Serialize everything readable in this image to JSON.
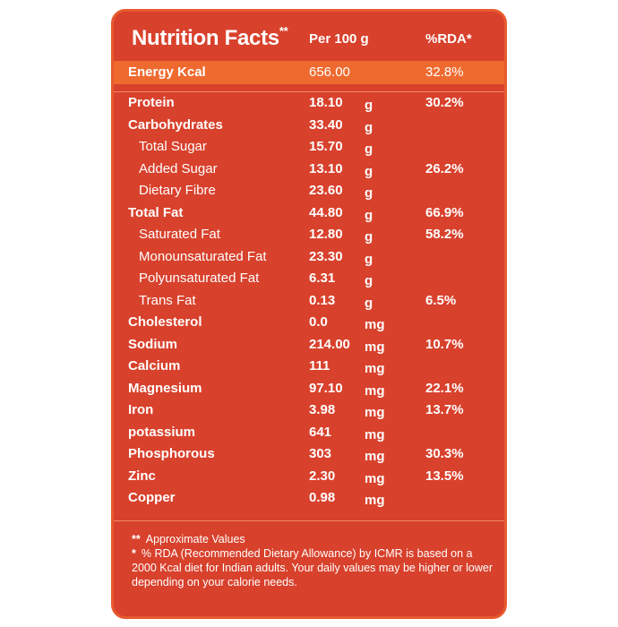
{
  "header": {
    "title": "Nutrition Facts",
    "title_mark": "**",
    "per_label": "Per 100 g",
    "rda_label": "%RDA*"
  },
  "energy": {
    "name": "Energy Kcal",
    "value": "656.00",
    "rda": "32.8%"
  },
  "rows": [
    {
      "name": "Protein",
      "value": "18.10",
      "unit": "g",
      "rda": "30.2%",
      "style": "bold"
    },
    {
      "name": "Carbohydrates",
      "value": "33.40",
      "unit": "g",
      "rda": "",
      "style": "bold"
    },
    {
      "name": "Total Sugar",
      "value": "15.70",
      "unit": "g",
      "rda": "",
      "style": "sub"
    },
    {
      "name": "Added Sugar",
      "value": "13.10",
      "unit": "g",
      "rda": "26.2%",
      "style": "sub"
    },
    {
      "name": "Dietary Fibre",
      "value": "23.60",
      "unit": "g",
      "rda": "",
      "style": "sub"
    },
    {
      "name": "Total Fat",
      "value": "44.80",
      "unit": "g",
      "rda": "66.9%",
      "style": "bold"
    },
    {
      "name": "Saturated Fat",
      "value": "12.80",
      "unit": "g",
      "rda": "58.2%",
      "style": "sub"
    },
    {
      "name": "Monounsaturated Fat",
      "value": "23.30",
      "unit": "g",
      "rda": "",
      "style": "sub"
    },
    {
      "name": "Polyunsaturated Fat",
      "value": "6.31",
      "unit": "g",
      "rda": "",
      "style": "sub"
    },
    {
      "name": "Trans Fat",
      "value": "0.13",
      "unit": "g",
      "rda": "6.5%",
      "style": "sub"
    },
    {
      "name": "Cholesterol",
      "value": "0.0",
      "unit": "mg",
      "rda": "",
      "style": "bold"
    },
    {
      "name": "Sodium",
      "value": "214.00",
      "unit": "mg",
      "rda": "10.7%",
      "style": "bold"
    },
    {
      "name": "Calcium",
      "value": "111",
      "unit": "mg",
      "rda": "",
      "style": "bold"
    },
    {
      "name": "Magnesium",
      "value": "97.10",
      "unit": "mg",
      "rda": "22.1%",
      "style": "bold"
    },
    {
      "name": "Iron",
      "value": "3.98",
      "unit": "mg",
      "rda": "13.7%",
      "style": "bold"
    },
    {
      "name": "potassium",
      "value": "641",
      "unit": "mg",
      "rda": "",
      "style": "bold"
    },
    {
      "name": "Phosphorous",
      "value": "303",
      "unit": "mg",
      "rda": "30.3%",
      "style": "bold"
    },
    {
      "name": "Zinc",
      "value": "2.30",
      "unit": "mg",
      "rda": "13.5%",
      "style": "bold"
    },
    {
      "name": "Copper",
      "value": "0.98",
      "unit": "mg",
      "rda": "",
      "style": "bold"
    }
  ],
  "footer": {
    "note1_mark": "**",
    "note1": "Approximate Values",
    "note2_mark": "*",
    "note2": "% RDA (Recommended Dietary Allowance) by ICMR is based on a 2000 Kcal diet for Indian adults. Your daily values may be higher or lower depending on your calorie needs."
  },
  "colors": {
    "panel": "#d8412c",
    "energy_band": "#ef6a2f",
    "text": "#ffffff"
  }
}
